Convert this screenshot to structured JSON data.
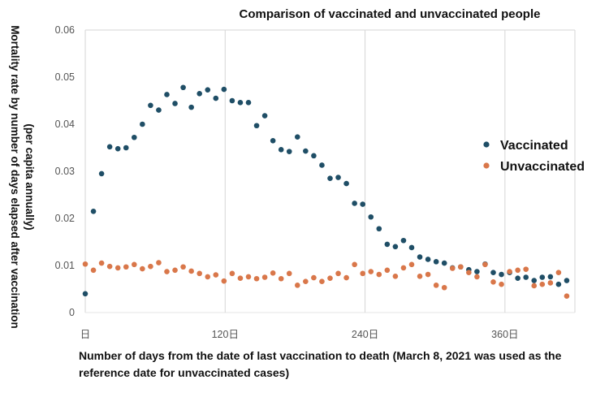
{
  "chart_data": {
    "type": "scatter",
    "title": "Comparison of vaccinated and unvaccinated people",
    "ylabel_line1": "Mortality rate by number of days elapsed after vaccination",
    "ylabel_line2": "(per capita annually)",
    "xlabel": "Number of days from the date of last vaccination to death (March 8, 2021 was used as the reference date for unvaccinated cases)",
    "xlim": [
      0,
      420
    ],
    "ylim": [
      0,
      0.06
    ],
    "x_ticks": [
      {
        "value": 0,
        "label": "日"
      },
      {
        "value": 120,
        "label": "120日"
      },
      {
        "value": 240,
        "label": "240日"
      },
      {
        "value": 360,
        "label": "360日"
      }
    ],
    "y_ticks": [
      {
        "value": 0,
        "label": "0"
      },
      {
        "value": 0.01,
        "label": "0.01"
      },
      {
        "value": 0.02,
        "label": "0.02"
      },
      {
        "value": 0.03,
        "label": "0.03"
      },
      {
        "value": 0.04,
        "label": "0.04"
      },
      {
        "value": 0.05,
        "label": "0.05"
      },
      {
        "value": 0.06,
        "label": "0.06"
      }
    ],
    "grid": {
      "horizontal": false,
      "vertical": true
    },
    "legend_position": "right",
    "series": [
      {
        "name": "Vaccinated",
        "color": "#1f4e66",
        "x": [
          0,
          7,
          14,
          21,
          28,
          35,
          42,
          49,
          56,
          63,
          70,
          77,
          84,
          91,
          98,
          105,
          112,
          119,
          126,
          133,
          140,
          147,
          154,
          161,
          168,
          175,
          182,
          189,
          196,
          203,
          210,
          217,
          224,
          231,
          238,
          245,
          252,
          259,
          266,
          273,
          280,
          287,
          294,
          301,
          308,
          315,
          322,
          329,
          336,
          343,
          350,
          357,
          364,
          371,
          378,
          385,
          392,
          399,
          406,
          413
        ],
        "y": [
          0.004,
          0.0215,
          0.0295,
          0.0352,
          0.0348,
          0.035,
          0.0372,
          0.04,
          0.044,
          0.043,
          0.0463,
          0.0444,
          0.0478,
          0.0436,
          0.0465,
          0.0473,
          0.0455,
          0.0474,
          0.045,
          0.0446,
          0.0446,
          0.0397,
          0.0418,
          0.0365,
          0.0346,
          0.0342,
          0.0373,
          0.0343,
          0.0333,
          0.0313,
          0.0285,
          0.0287,
          0.0274,
          0.0232,
          0.023,
          0.0203,
          0.0178,
          0.0145,
          0.014,
          0.0153,
          0.0138,
          0.0118,
          0.0113,
          0.0108,
          0.0105,
          0.0095,
          0.0097,
          0.0091,
          0.0087,
          0.0103,
          0.0085,
          0.0081,
          0.0085,
          0.0073,
          0.0075,
          0.0068,
          0.0075,
          0.0076,
          0.006,
          0.0068
        ]
      },
      {
        "name": "Unvaccinated",
        "color": "#d9774a",
        "x": [
          0,
          7,
          14,
          21,
          28,
          35,
          42,
          49,
          56,
          63,
          70,
          77,
          84,
          91,
          98,
          105,
          112,
          119,
          126,
          133,
          140,
          147,
          154,
          161,
          168,
          175,
          182,
          189,
          196,
          203,
          210,
          217,
          224,
          231,
          238,
          245,
          252,
          259,
          266,
          273,
          280,
          287,
          294,
          301,
          308,
          315,
          322,
          329,
          336,
          343,
          350,
          357,
          364,
          371,
          378,
          385,
          392,
          399,
          406,
          413
        ],
        "y": [
          0.0103,
          0.009,
          0.0105,
          0.0098,
          0.0095,
          0.0097,
          0.0102,
          0.0093,
          0.0098,
          0.0106,
          0.0087,
          0.009,
          0.0097,
          0.0088,
          0.0083,
          0.0076,
          0.008,
          0.0067,
          0.0083,
          0.0073,
          0.0076,
          0.0072,
          0.0075,
          0.0084,
          0.0072,
          0.0083,
          0.0058,
          0.0066,
          0.0074,
          0.0066,
          0.0073,
          0.0083,
          0.0074,
          0.0102,
          0.0083,
          0.0087,
          0.0081,
          0.009,
          0.0077,
          0.0095,
          0.0102,
          0.0077,
          0.0081,
          0.0058,
          0.0053,
          0.0094,
          0.0097,
          0.0085,
          0.0076,
          0.0102,
          0.0065,
          0.006,
          0.0087,
          0.009,
          0.0092,
          0.0057,
          0.006,
          0.0063,
          0.0085,
          0.0035
        ]
      }
    ]
  }
}
